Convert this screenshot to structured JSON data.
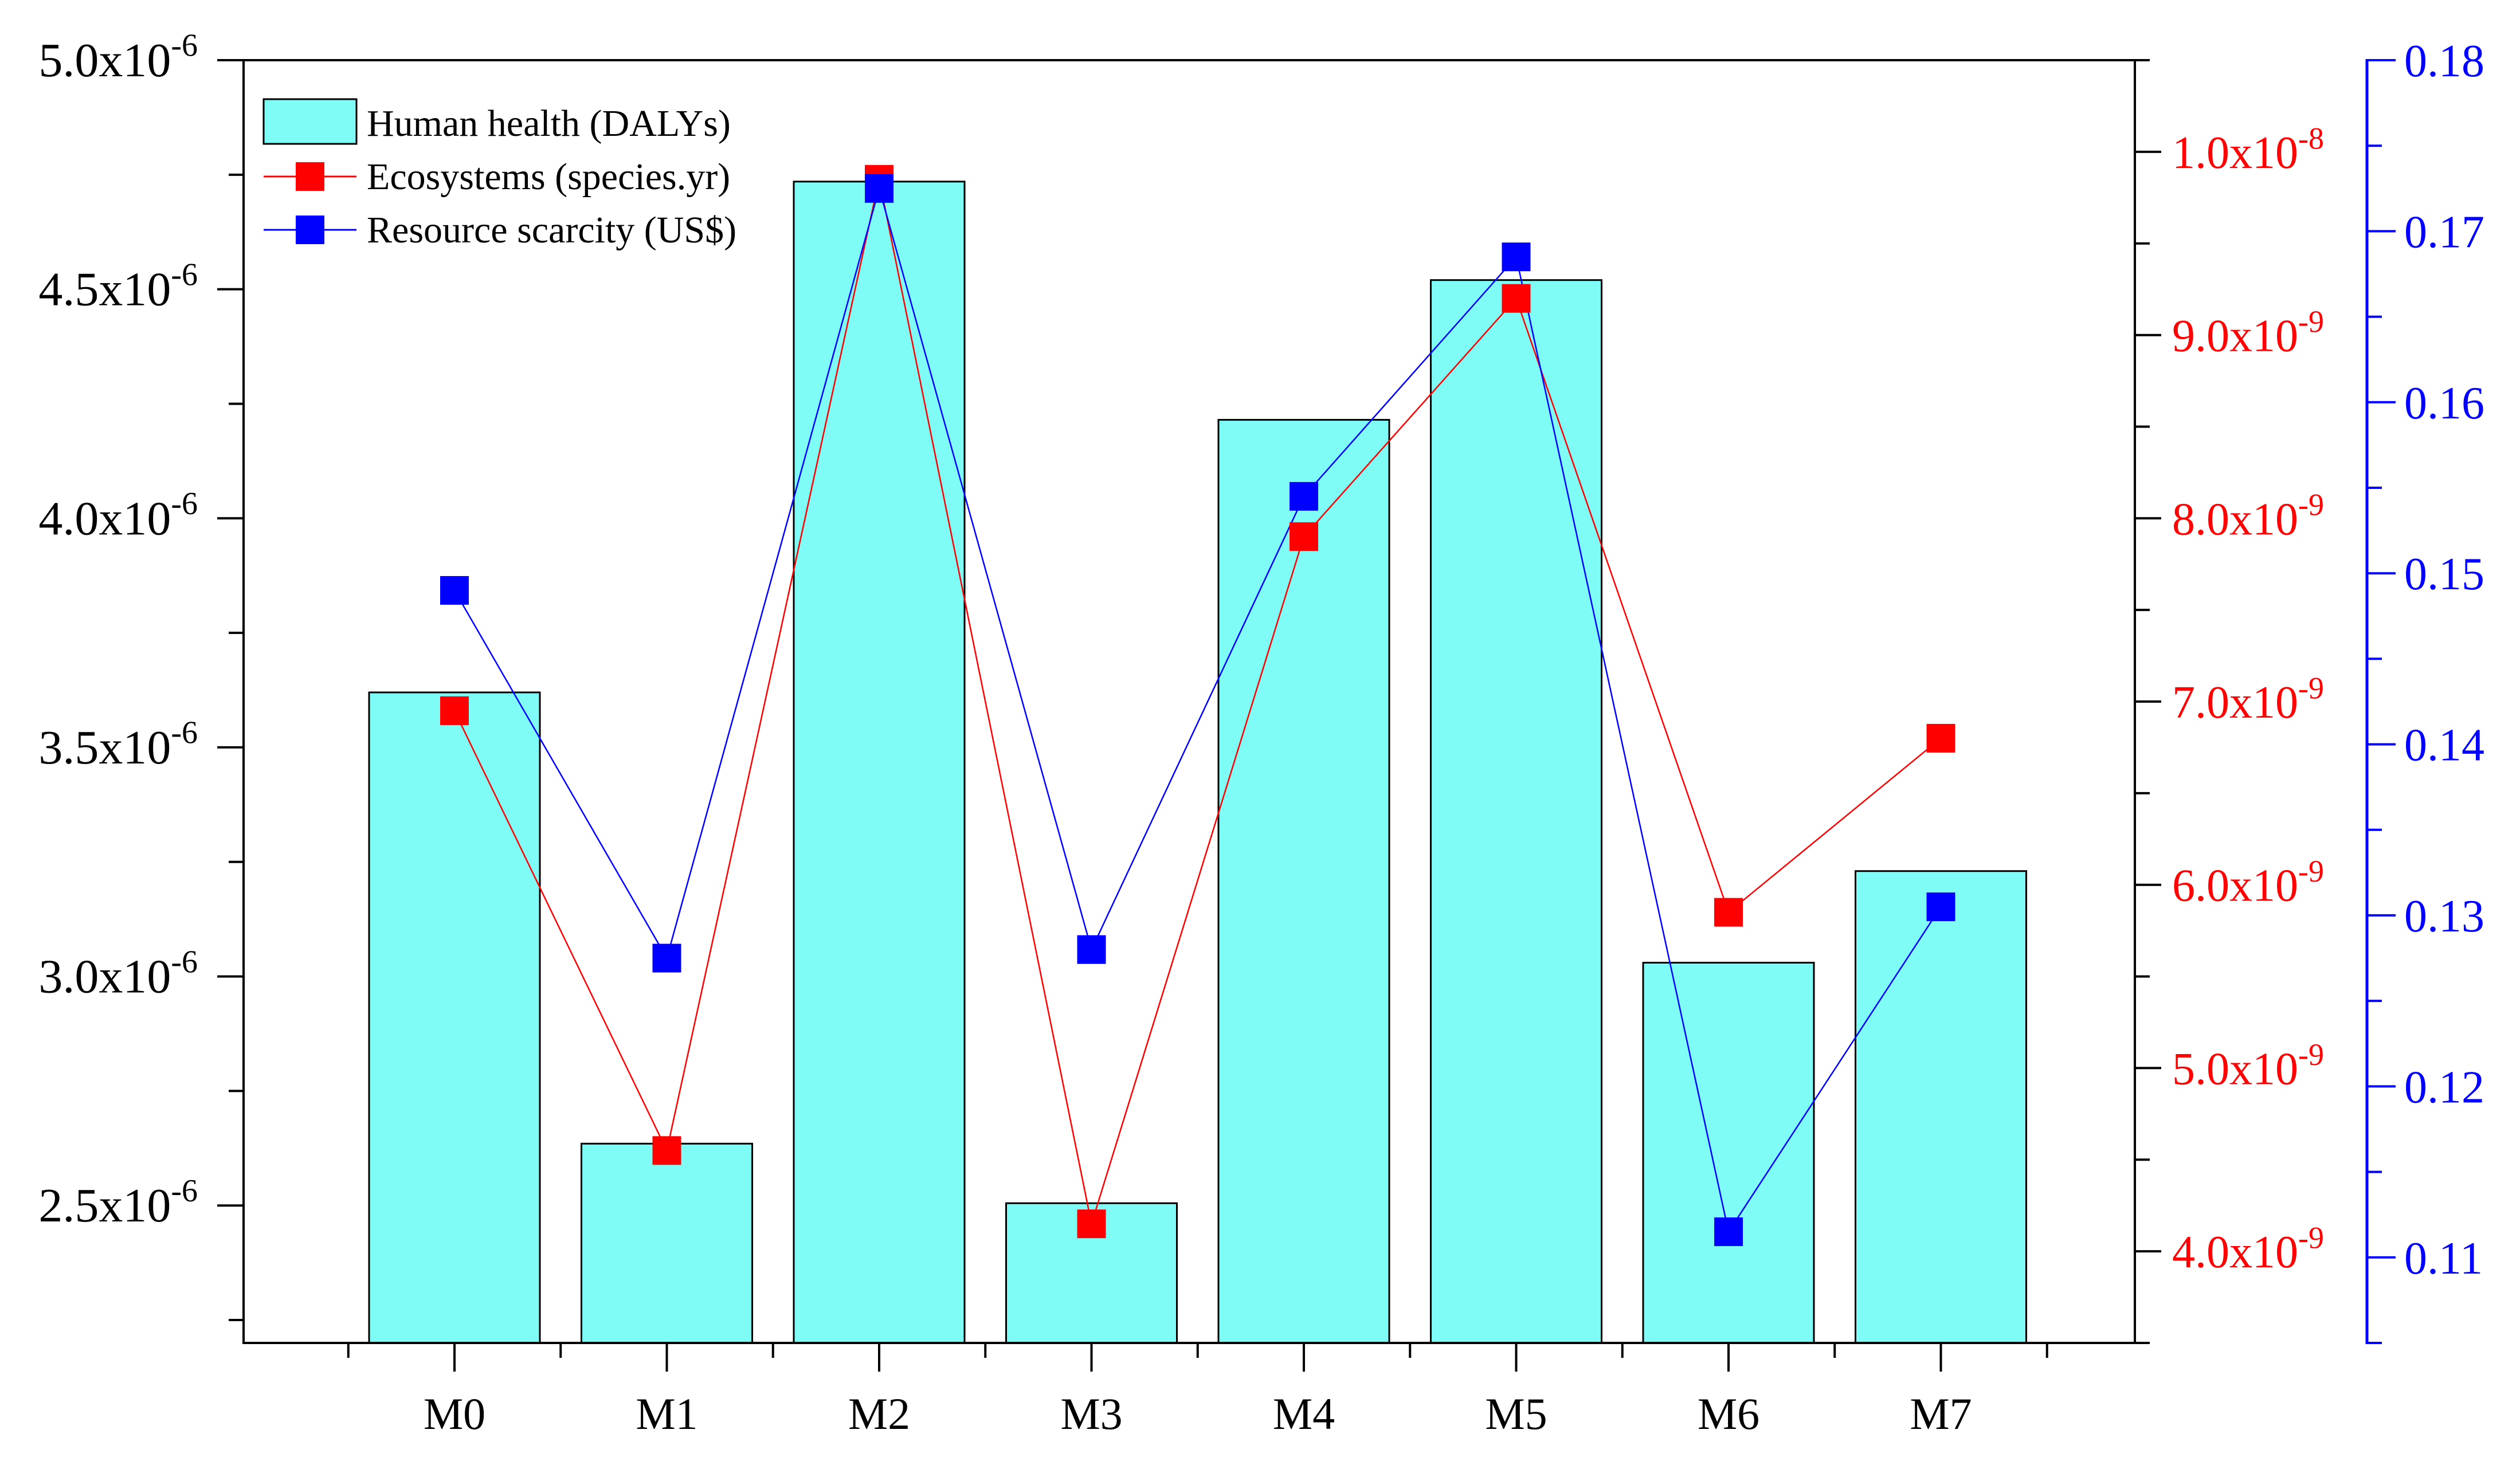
{
  "chart_data": {
    "type": "bar+line",
    "categories": [
      "M0",
      "M1",
      "M2",
      "M3",
      "M4",
      "M5",
      "M6",
      "M7"
    ],
    "series": [
      {
        "name": "Human health (DALYs)",
        "type": "bar",
        "axis": "left",
        "color": "#7ffcf6",
        "values": [
          3.62e-06,
          2.635e-06,
          4.735e-06,
          2.505e-06,
          4.215e-06,
          4.52e-06,
          3.03e-06,
          3.23e-06
        ]
      },
      {
        "name": "Ecosystems (species.yr)",
        "type": "line",
        "axis": "right1",
        "color": "#ff0000",
        "values": [
          6.95e-09,
          4.55e-09,
          9.85e-09,
          4.15e-09,
          7.9e-09,
          9.2e-09,
          5.85e-09,
          6.8e-09
        ]
      },
      {
        "name": "Resource scarcity (US$)",
        "type": "line",
        "axis": "right2",
        "color": "#0000ff",
        "values": [
          0.149,
          0.1275,
          0.1725,
          0.128,
          0.1545,
          0.1685,
          0.1115,
          0.1305
        ]
      }
    ],
    "axes": {
      "left": {
        "range": [
          2.2e-06,
          5e-06
        ],
        "major_ticks": [
          2.5e-06,
          3e-06,
          3.5e-06,
          4e-06,
          4.5e-06,
          5e-06
        ],
        "tick_labels": [
          {
            "base": "2.5x10",
            "exp": "-6"
          },
          {
            "base": "3.0x10",
            "exp": "-6"
          },
          {
            "base": "3.5x10",
            "exp": "-6"
          },
          {
            "base": "4.0x10",
            "exp": "-6"
          },
          {
            "base": "4.5x10",
            "exp": "-6"
          },
          {
            "base": "5.0x10",
            "exp": "-6"
          }
        ],
        "color": "#000000"
      },
      "right1": {
        "range": [
          3.5e-09,
          1.05e-08
        ],
        "major_ticks": [
          4e-09,
          5e-09,
          6e-09,
          7e-09,
          8e-09,
          9e-09,
          1e-08
        ],
        "tick_labels": [
          {
            "base": "4.0x10",
            "exp": "-9"
          },
          {
            "base": "5.0x10",
            "exp": "-9"
          },
          {
            "base": "6.0x10",
            "exp": "-9"
          },
          {
            "base": "7.0x10",
            "exp": "-9"
          },
          {
            "base": "8.0x10",
            "exp": "-9"
          },
          {
            "base": "9.0x10",
            "exp": "-9"
          },
          {
            "base": "1.0x10",
            "exp": "-8"
          }
        ],
        "color": "#ff0000"
      },
      "right2": {
        "range": [
          0.105,
          0.18
        ],
        "major_ticks": [
          0.11,
          0.12,
          0.13,
          0.14,
          0.15,
          0.16,
          0.17,
          0.18
        ],
        "tick_labels": [
          "0.11",
          "0.12",
          "0.13",
          "0.14",
          "0.15",
          "0.16",
          "0.17",
          "0.18"
        ],
        "color": "#0000ff"
      }
    },
    "legend_position": "top-left",
    "title": "",
    "xlabel": "",
    "ylabel": ""
  }
}
